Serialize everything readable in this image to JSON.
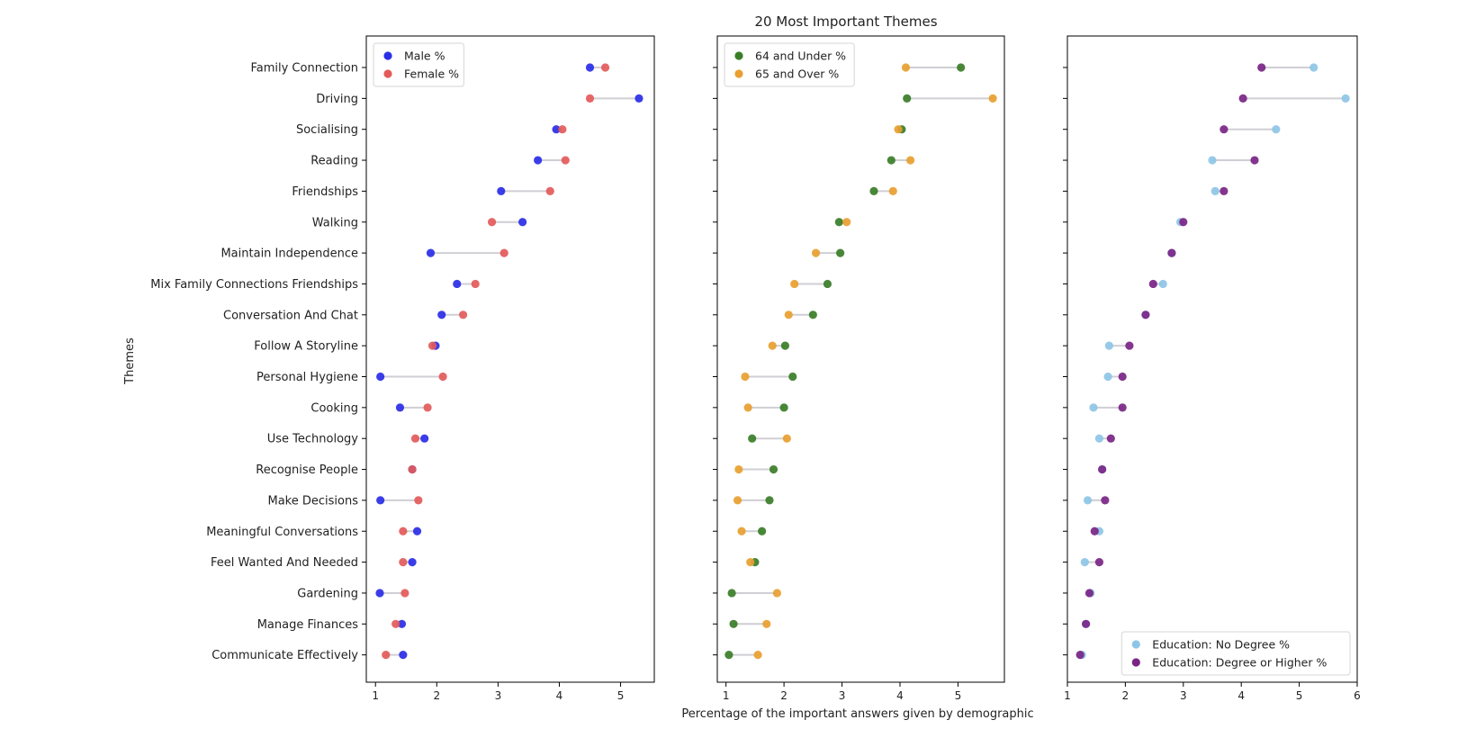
{
  "figure": {
    "title": "20 Most Important Themes",
    "xlabel": "Percentage of the important answers given by demographic",
    "ylabel": "Themes"
  },
  "chart_data": [
    {
      "type": "dumbbell",
      "categories": [
        "Family Connection",
        "Driving",
        "Socialising",
        "Reading",
        "Friendships",
        "Walking",
        "Maintain Independence",
        "Mix Family Connections Friendships",
        "Conversation And Chat",
        "Follow A Storyline",
        "Personal Hygiene",
        "Cooking",
        "Use Technology",
        "Recognise People",
        "Make Decisions",
        "Meaningful Conversations",
        "Feel Wanted And Needed",
        "Gardening",
        "Manage Finances",
        "Communicate Effectively"
      ],
      "xlim": [
        0.85,
        5.55
      ],
      "xticks": [
        1,
        2,
        3,
        4,
        5
      ],
      "legend_position": "upper left",
      "series": [
        {
          "name": "Male %",
          "color": "#2a2ee6",
          "values": [
            4.5,
            5.3,
            3.95,
            3.65,
            3.05,
            3.4,
            1.9,
            2.33,
            2.08,
            1.98,
            1.08,
            1.4,
            1.8,
            1.6,
            1.08,
            1.68,
            1.6,
            1.07,
            1.43,
            1.45
          ]
        },
        {
          "name": "Female %",
          "color": "#e35a5a",
          "values": [
            4.75,
            4.5,
            4.05,
            4.1,
            3.85,
            2.9,
            3.1,
            2.63,
            2.43,
            1.93,
            2.1,
            1.85,
            1.65,
            1.6,
            1.7,
            1.45,
            1.45,
            1.48,
            1.33,
            1.17
          ]
        }
      ]
    },
    {
      "type": "dumbbell",
      "categories": [
        "Family Connection",
        "Driving",
        "Socialising",
        "Reading",
        "Friendships",
        "Walking",
        "Maintain Independence",
        "Mix Family Connections Friendships",
        "Conversation And Chat",
        "Follow A Storyline",
        "Personal Hygiene",
        "Cooking",
        "Use Technology",
        "Recognise People",
        "Make Decisions",
        "Meaningful Conversations",
        "Feel Wanted And Needed",
        "Gardening",
        "Manage Finances",
        "Communicate Effectively"
      ],
      "xlim": [
        0.85,
        5.8
      ],
      "xticks": [
        1,
        2,
        3,
        4,
        5
      ],
      "legend_position": "upper left",
      "series": [
        {
          "name": "64 and Under %",
          "color": "#3a7d28",
          "values": [
            5.05,
            4.12,
            4.03,
            3.85,
            3.55,
            2.95,
            2.97,
            2.75,
            2.5,
            2.02,
            2.15,
            2.0,
            1.45,
            1.82,
            1.75,
            1.62,
            1.5,
            1.1,
            1.13,
            1.05
          ]
        },
        {
          "name": "65 and Over %",
          "color": "#e8a030",
          "values": [
            4.1,
            5.6,
            3.97,
            4.18,
            3.88,
            3.08,
            2.55,
            2.18,
            2.08,
            1.8,
            1.33,
            1.38,
            2.05,
            1.22,
            1.2,
            1.27,
            1.42,
            1.88,
            1.7,
            1.55
          ]
        }
      ]
    },
    {
      "type": "dumbbell",
      "categories": [
        "Family Connection",
        "Driving",
        "Socialising",
        "Reading",
        "Friendships",
        "Walking",
        "Maintain Independence",
        "Mix Family Connections Friendships",
        "Conversation And Chat",
        "Follow A Storyline",
        "Personal Hygiene",
        "Cooking",
        "Use Technology",
        "Recognise People",
        "Make Decisions",
        "Meaningful Conversations",
        "Feel Wanted And Needed",
        "Gardening",
        "Manage Finances",
        "Communicate Effectively"
      ],
      "xlim": [
        1.0,
        6.0
      ],
      "xticks": [
        1,
        2,
        3,
        4,
        5,
        6
      ],
      "legend_position": "lower right",
      "series": [
        {
          "name": "Education: No Degree %",
          "color": "#8ec5e6",
          "values": [
            5.25,
            5.8,
            4.6,
            3.5,
            3.55,
            2.95,
            2.8,
            2.65,
            2.35,
            1.72,
            1.7,
            1.45,
            1.55,
            1.6,
            1.35,
            1.55,
            1.3,
            1.4,
            1.32,
            1.25
          ]
        },
        {
          "name": "Education: Degree or Higher %",
          "color": "#7a2585",
          "values": [
            4.35,
            4.03,
            3.7,
            4.23,
            3.7,
            3.0,
            2.8,
            2.48,
            2.35,
            2.07,
            1.95,
            1.95,
            1.75,
            1.6,
            1.65,
            1.47,
            1.55,
            1.38,
            1.32,
            1.22
          ]
        }
      ]
    }
  ]
}
